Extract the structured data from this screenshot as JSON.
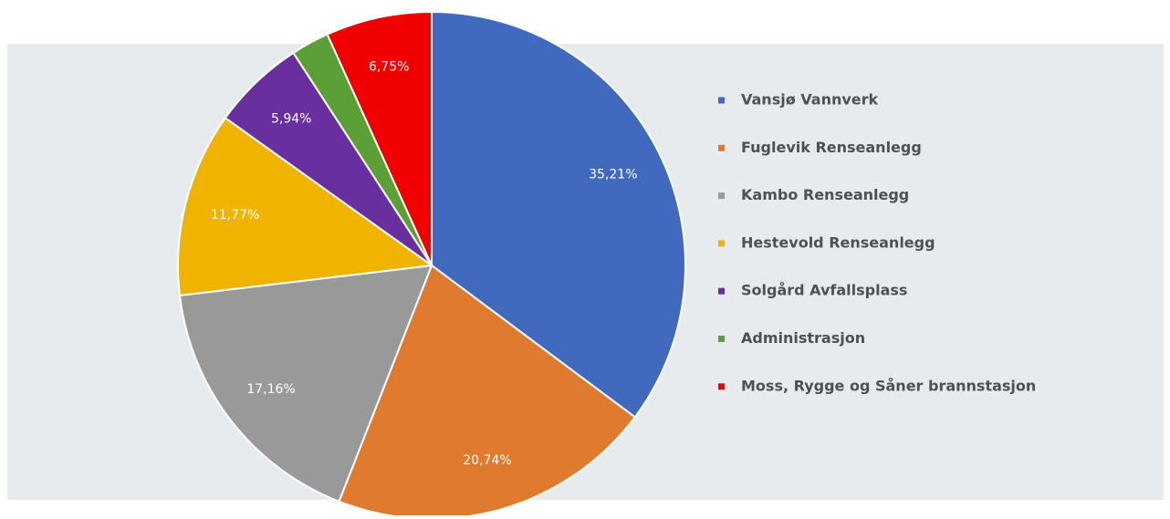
{
  "chart_data": {
    "type": "pie",
    "categories": [
      "Vansjø Vannverk",
      "Fuglevik Renseanlegg",
      "Kambo Renseanlegg",
      "Hestevold Renseanlegg",
      "Solgård Avfallsplass",
      "Administrasjon",
      "Moss, Rygge og Såner brannstasjon"
    ],
    "values": [
      35.21,
      20.74,
      17.16,
      11.77,
      5.94,
      2.43,
      6.75
    ],
    "value_labels": [
      "35,21%",
      "20,74%",
      "17,16%",
      "11,77%",
      "5,94%",
      null,
      "6,75%"
    ],
    "colors": [
      "#4169be",
      "#e07a2e",
      "#999999",
      "#f0b400",
      "#6a2f9e",
      "#5aa036",
      "#f00000"
    ],
    "legend": "right"
  }
}
